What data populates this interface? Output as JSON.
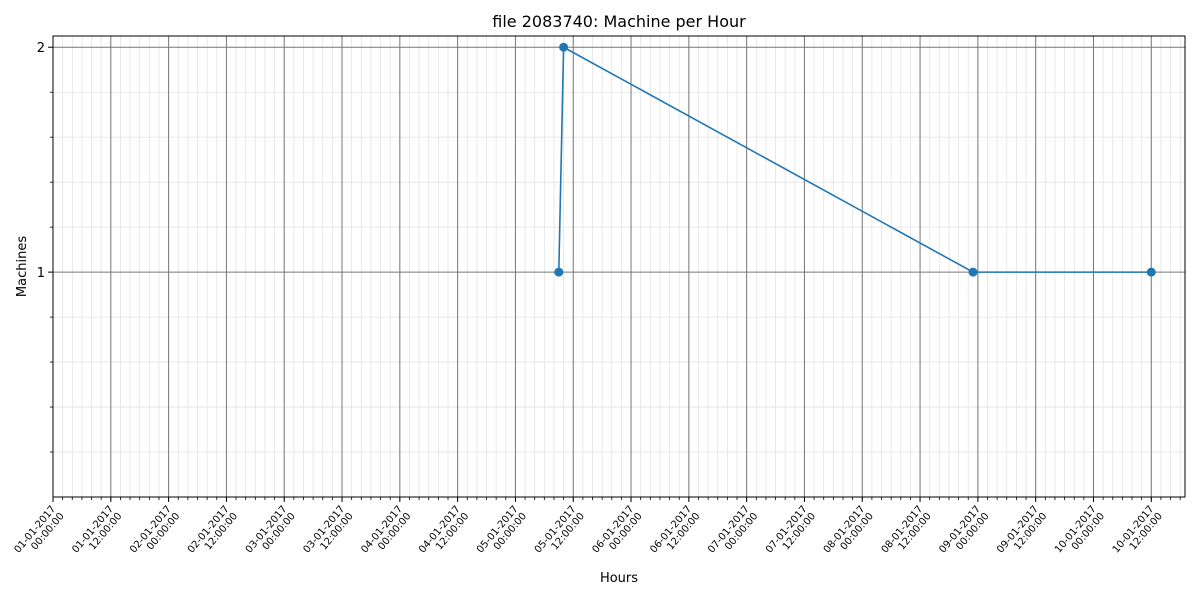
{
  "chart_data": {
    "type": "line",
    "title": "file 2083740: Machine per Hour",
    "xlabel": "Hours",
    "ylabel": "Machines",
    "x_range": [
      "2017-01-01T00:00:00",
      "2017-01-10T19:00:00"
    ],
    "ylim": [
      0,
      2.05
    ],
    "y_major_ticks": [
      1,
      2
    ],
    "y_tick_labels": [
      "1",
      "2"
    ],
    "y_minor_ticks": [
      0.2,
      0.4,
      0.6,
      0.8,
      1.2,
      1.4,
      1.6,
      1.8
    ],
    "x_major_ticks": [
      "2017-01-01T00:00:00",
      "2017-01-01T12:00:00",
      "2017-01-02T00:00:00",
      "2017-01-02T12:00:00",
      "2017-01-03T00:00:00",
      "2017-01-03T12:00:00",
      "2017-01-04T00:00:00",
      "2017-01-04T12:00:00",
      "2017-01-05T00:00:00",
      "2017-01-05T12:00:00",
      "2017-01-06T00:00:00",
      "2017-01-06T12:00:00",
      "2017-01-07T00:00:00",
      "2017-01-07T12:00:00",
      "2017-01-08T00:00:00",
      "2017-01-08T12:00:00",
      "2017-01-09T00:00:00",
      "2017-01-09T12:00:00",
      "2017-01-10T00:00:00",
      "2017-01-10T12:00:00"
    ],
    "x_tick_labels": [
      [
        "01-01-2017",
        "00:00:00"
      ],
      [
        "01-01-2017",
        "12:00:00"
      ],
      [
        "02-01-2017",
        "00:00:00"
      ],
      [
        "02-01-2017",
        "12:00:00"
      ],
      [
        "03-01-2017",
        "00:00:00"
      ],
      [
        "03-01-2017",
        "12:00:00"
      ],
      [
        "04-01-2017",
        "00:00:00"
      ],
      [
        "04-01-2017",
        "12:00:00"
      ],
      [
        "05-01-2017",
        "00:00:00"
      ],
      [
        "05-01-2017",
        "12:00:00"
      ],
      [
        "06-01-2017",
        "00:00:00"
      ],
      [
        "06-01-2017",
        "12:00:00"
      ],
      [
        "07-01-2017",
        "00:00:00"
      ],
      [
        "07-01-2017",
        "12:00:00"
      ],
      [
        "08-01-2017",
        "00:00:00"
      ],
      [
        "08-01-2017",
        "12:00:00"
      ],
      [
        "09-01-2017",
        "00:00:00"
      ],
      [
        "09-01-2017",
        "12:00:00"
      ],
      [
        "10-01-2017",
        "00:00:00"
      ],
      [
        "10-01-2017",
        "12:00:00"
      ]
    ],
    "x_minor_tick_step_hours": 2,
    "grid": true,
    "series": [
      {
        "color": "#1f77b4",
        "points": [
          {
            "x": "2017-01-05T09:00:00",
            "y": 1
          },
          {
            "x": "2017-01-05T10:00:00",
            "y": 2
          },
          {
            "x": "2017-01-08T23:00:00",
            "y": 1
          },
          {
            "x": "2017-01-10T12:00:00",
            "y": 1
          }
        ]
      }
    ]
  }
}
